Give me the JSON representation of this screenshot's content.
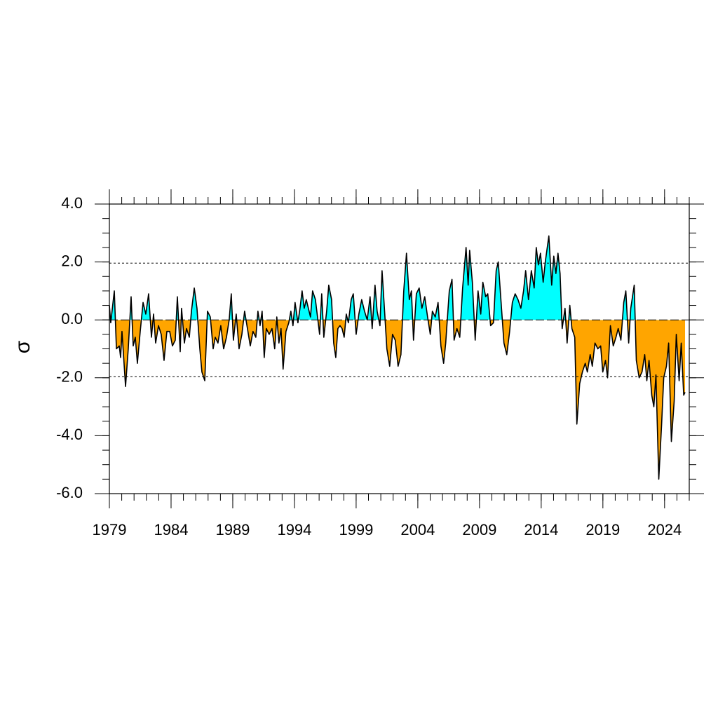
{
  "chart_data": {
    "type": "area",
    "y_label": "σ",
    "xlim": [
      1979,
      2026
    ],
    "ylim": [
      -6,
      4
    ],
    "xticks": [
      1979,
      1984,
      1989,
      1994,
      1999,
      2004,
      2009,
      2014,
      2019,
      2024
    ],
    "yticks": [
      {
        "value": -6,
        "label": "-6.0"
      },
      {
        "value": -4,
        "label": "-4.0"
      },
      {
        "value": -2,
        "label": "-2.0"
      },
      {
        "value": 0,
        "label": "0.0"
      },
      {
        "value": 2,
        "label": "2.0"
      },
      {
        "value": 4,
        "label": "4.0"
      }
    ],
    "xminor": 1,
    "yminor": 0.5,
    "reference_lines": [
      1.96,
      -1.96
    ],
    "positive_color": "#00ffff",
    "negative_color": "#ffa500",
    "line_color": "#000000",
    "x": [
      1979.0,
      1979.11,
      1979.4,
      1979.57,
      1979.8,
      1979.91,
      1980.02,
      1980.31,
      1980.53,
      1980.76,
      1980.93,
      1981.1,
      1981.27,
      1981.5,
      1981.73,
      1981.95,
      1982.18,
      1982.41,
      1982.58,
      1982.75,
      1982.98,
      1983.2,
      1983.43,
      1983.66,
      1983.89,
      1984.11,
      1984.34,
      1984.51,
      1984.74,
      1984.85,
      1985.08,
      1985.25,
      1985.48,
      1985.65,
      1985.88,
      1986.1,
      1986.33,
      1986.5,
      1986.73,
      1986.95,
      1987.18,
      1987.41,
      1987.58,
      1987.8,
      1988.03,
      1988.26,
      1988.49,
      1988.71,
      1988.88,
      1989.05,
      1989.28,
      1989.51,
      1989.74,
      1989.96,
      1990.19,
      1990.42,
      1990.64,
      1990.87,
      1991.04,
      1991.21,
      1991.38,
      1991.55,
      1991.72,
      1991.95,
      1992.18,
      1992.4,
      1992.57,
      1992.74,
      1992.91,
      1993.08,
      1993.31,
      1993.54,
      1993.71,
      1993.88,
      1994.05,
      1994.28,
      1994.45,
      1994.62,
      1994.79,
      1994.96,
      1995.13,
      1995.3,
      1995.47,
      1995.7,
      1995.87,
      1996.04,
      1996.21,
      1996.38,
      1996.61,
      1996.78,
      1997.01,
      1997.18,
      1997.35,
      1997.52,
      1997.69,
      1997.86,
      1998.03,
      1998.2,
      1998.37,
      1998.6,
      1998.77,
      1999.0,
      1999.22,
      1999.45,
      1999.68,
      1999.9,
      2000.13,
      2000.3,
      2000.53,
      2000.7,
      2000.93,
      2001.1,
      2001.32,
      2001.49,
      2001.72,
      2001.95,
      2002.17,
      2002.4,
      2002.63,
      2002.86,
      2003.08,
      2003.31,
      2003.48,
      2003.65,
      2003.88,
      2004.11,
      2004.33,
      2004.56,
      2004.79,
      2005.01,
      2005.18,
      2005.41,
      2005.64,
      2005.87,
      2006.09,
      2006.26,
      2006.55,
      2006.77,
      2006.94,
      2007.17,
      2007.4,
      2007.63,
      2007.91,
      2008.08,
      2008.2,
      2008.42,
      2008.65,
      2008.88,
      2009.1,
      2009.27,
      2009.5,
      2009.67,
      2009.9,
      2010.13,
      2010.35,
      2010.52,
      2010.75,
      2010.98,
      2011.21,
      2011.44,
      2011.66,
      2011.89,
      2012.12,
      2012.35,
      2012.57,
      2012.74,
      2012.97,
      2013.2,
      2013.43,
      2013.6,
      2013.77,
      2013.94,
      2014.16,
      2014.33,
      2014.62,
      2014.85,
      2015.02,
      2015.19,
      2015.36,
      2015.53,
      2015.7,
      2015.93,
      2016.1,
      2016.32,
      2016.49,
      2016.72,
      2016.89,
      2017.12,
      2017.34,
      2017.57,
      2017.74,
      2017.97,
      2018.14,
      2018.36,
      2018.59,
      2018.82,
      2018.99,
      2019.21,
      2019.38,
      2019.61,
      2019.84,
      2020.06,
      2020.24,
      2020.46,
      2020.69,
      2020.86,
      2021.09,
      2021.26,
      2021.54,
      2021.71,
      2021.94,
      2022.17,
      2022.39,
      2022.56,
      2022.74,
      2022.96,
      2023.13,
      2023.3,
      2023.53,
      2023.76,
      2023.93,
      2024.15,
      2024.33,
      2024.55,
      2024.78,
      2024.95,
      2025.18,
      2025.35,
      2025.55,
      2025.66
    ],
    "values": [
      0.5,
      -0.1,
      1.0,
      -1.0,
      -0.9,
      -1.3,
      -0.4,
      -2.3,
      -1.0,
      0.8,
      -0.9,
      -0.6,
      -1.5,
      -0.4,
      0.6,
      0.2,
      0.9,
      -0.6,
      0.2,
      -0.8,
      -0.2,
      -0.5,
      -1.4,
      -0.4,
      -0.4,
      -0.9,
      -0.7,
      0.8,
      -1.1,
      0.4,
      -0.8,
      -0.3,
      -0.6,
      0.3,
      1.1,
      0.4,
      -1.0,
      -1.8,
      -2.1,
      0.3,
      0.1,
      -1.0,
      -0.6,
      -0.8,
      -0.2,
      -1.0,
      -0.6,
      0.0,
      0.9,
      -0.7,
      0.2,
      -1.0,
      -0.5,
      0.3,
      -0.3,
      -0.9,
      -0.4,
      -0.6,
      0.3,
      -0.2,
      0.3,
      -1.3,
      -0.3,
      -0.5,
      -0.3,
      -1.0,
      0.1,
      -0.8,
      -0.3,
      -1.7,
      -0.4,
      -0.1,
      0.3,
      -0.2,
      0.6,
      -0.1,
      0.4,
      1.0,
      0.4,
      0.7,
      0.4,
      0.1,
      1.0,
      0.7,
      0.1,
      -0.5,
      0.9,
      -0.6,
      0.3,
      1.2,
      0.7,
      -0.8,
      -1.3,
      -0.3,
      -0.2,
      -0.3,
      -0.6,
      0.2,
      -0.1,
      0.7,
      0.9,
      -0.5,
      0.2,
      0.7,
      0.3,
      0.0,
      0.8,
      -0.3,
      1.2,
      0.3,
      -0.2,
      1.7,
      0.2,
      -1.0,
      -1.6,
      -0.5,
      -0.7,
      -1.6,
      -1.2,
      1.0,
      2.3,
      0.7,
      1.0,
      -0.7,
      0.9,
      1.1,
      0.4,
      0.8,
      0.1,
      -0.5,
      0.3,
      0.1,
      0.6,
      -0.9,
      -1.5,
      -0.8,
      1.0,
      1.4,
      -0.7,
      -0.3,
      -0.6,
      1.1,
      2.5,
      1.2,
      2.4,
      1.3,
      -0.7,
      1.0,
      0.2,
      1.3,
      0.8,
      0.9,
      -0.2,
      -0.1,
      1.7,
      2.0,
      0.6,
      -0.8,
      -1.2,
      -0.4,
      0.6,
      0.9,
      0.7,
      0.4,
      1.0,
      1.7,
      0.7,
      1.7,
      1.1,
      2.5,
      1.9,
      2.3,
      1.3,
      2.0,
      2.9,
      1.2,
      2.2,
      1.6,
      2.3,
      1.6,
      -0.3,
      0.4,
      -0.8,
      0.5,
      -0.3,
      -0.6,
      -3.6,
      -2.2,
      -1.8,
      -1.5,
      -1.8,
      -1.2,
      -1.6,
      -0.8,
      -1.0,
      -0.9,
      -1.8,
      -1.4,
      -2.0,
      -0.2,
      -0.9,
      -0.6,
      -0.3,
      -0.7,
      0.6,
      1.0,
      -0.8,
      0.4,
      1.2,
      -1.4,
      -2.0,
      -1.8,
      -1.2,
      -2.1,
      -1.4,
      -2.6,
      -3.0,
      -1.9,
      -5.5,
      -3.6,
      -2.0,
      -1.6,
      -0.8,
      -4.2,
      -2.8,
      -0.5,
      -2.1,
      -0.8,
      -2.6,
      -2.5
    ]
  }
}
